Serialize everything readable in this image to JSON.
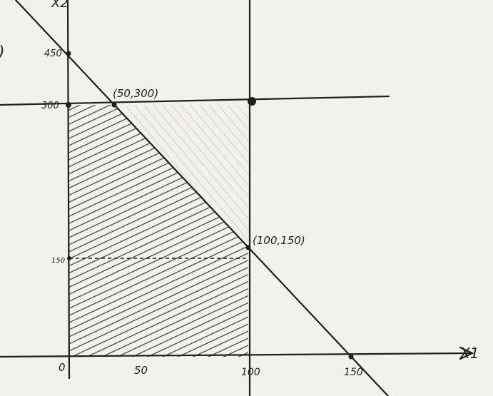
{
  "axes": {
    "y_label": "X2",
    "x_label": "X1",
    "y_ticks": [
      "450",
      "300",
      "150"
    ],
    "x_ticks": [
      "0",
      "50",
      "100",
      "150"
    ]
  },
  "points": [
    "(50,300)",
    "(100,150)"
  ],
  "margin_mark": ")"
}
